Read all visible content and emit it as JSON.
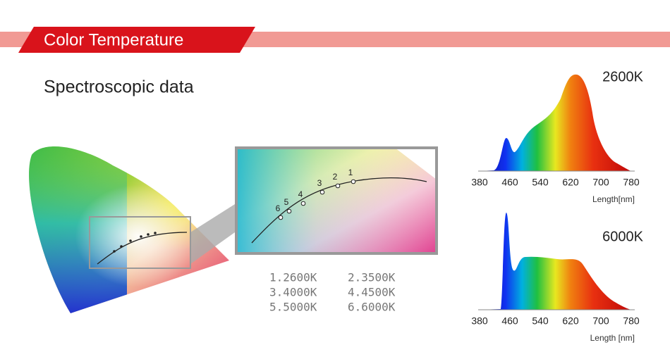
{
  "header": {
    "title": "Color Temperature"
  },
  "subtitle": "Spectroscopic data",
  "inset": {
    "point_labels": [
      "1",
      "2",
      "3",
      "4",
      "5",
      "6"
    ]
  },
  "legend": [
    "1.2600K",
    "2.3500K",
    "3.4000K",
    "4.4500K",
    "5.5000K",
    "6.6000K"
  ],
  "spectra": [
    {
      "label": "2600K",
      "ticks": [
        "380",
        "460",
        "540",
        "620",
        "700",
        "780"
      ],
      "axis_label": "Length[nm]"
    },
    {
      "label": "6000K",
      "ticks": [
        "380",
        "460",
        "540",
        "620",
        "700",
        "780"
      ],
      "axis_label": "Length [nm]"
    }
  ]
}
